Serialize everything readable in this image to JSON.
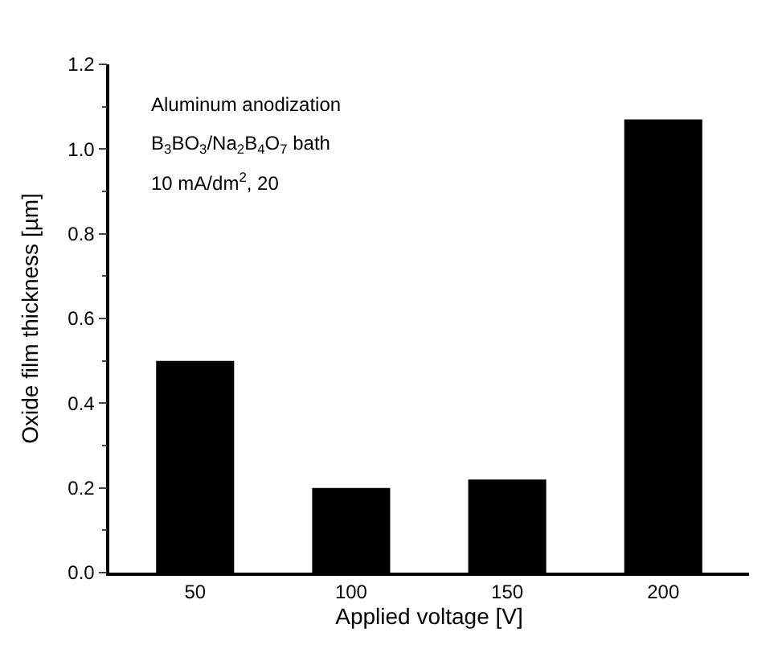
{
  "chart_data": {
    "type": "bar",
    "xlabel": "Applied voltage [V]",
    "ylabel": "Oxide film thickness [µm]",
    "categories": [
      "50",
      "100",
      "150",
      "200"
    ],
    "values": [
      0.5,
      0.2,
      0.22,
      1.07
    ],
    "color": "#000000",
    "ylim": [
      0,
      1.2
    ],
    "yticks": [
      {
        "value": 0,
        "label": "0.0"
      },
      {
        "value": 0.2,
        "label": "0.2"
      },
      {
        "value": 0.4,
        "label": "0.4"
      },
      {
        "value": 0.6,
        "label": "0.6"
      },
      {
        "value": 0.8,
        "label": "0.8"
      },
      {
        "value": 1.0,
        "label": "1.0"
      },
      {
        "value": 1.2,
        "label": "1.2"
      }
    ],
    "annotations": [
      "Aluminum anodization",
      "B$_{3}$BO$_{3}$/Na$_{2}$B$_{4}$O$_{7}$ bath",
      "10 mA/dm$^{2}$, 20"
    ]
  }
}
